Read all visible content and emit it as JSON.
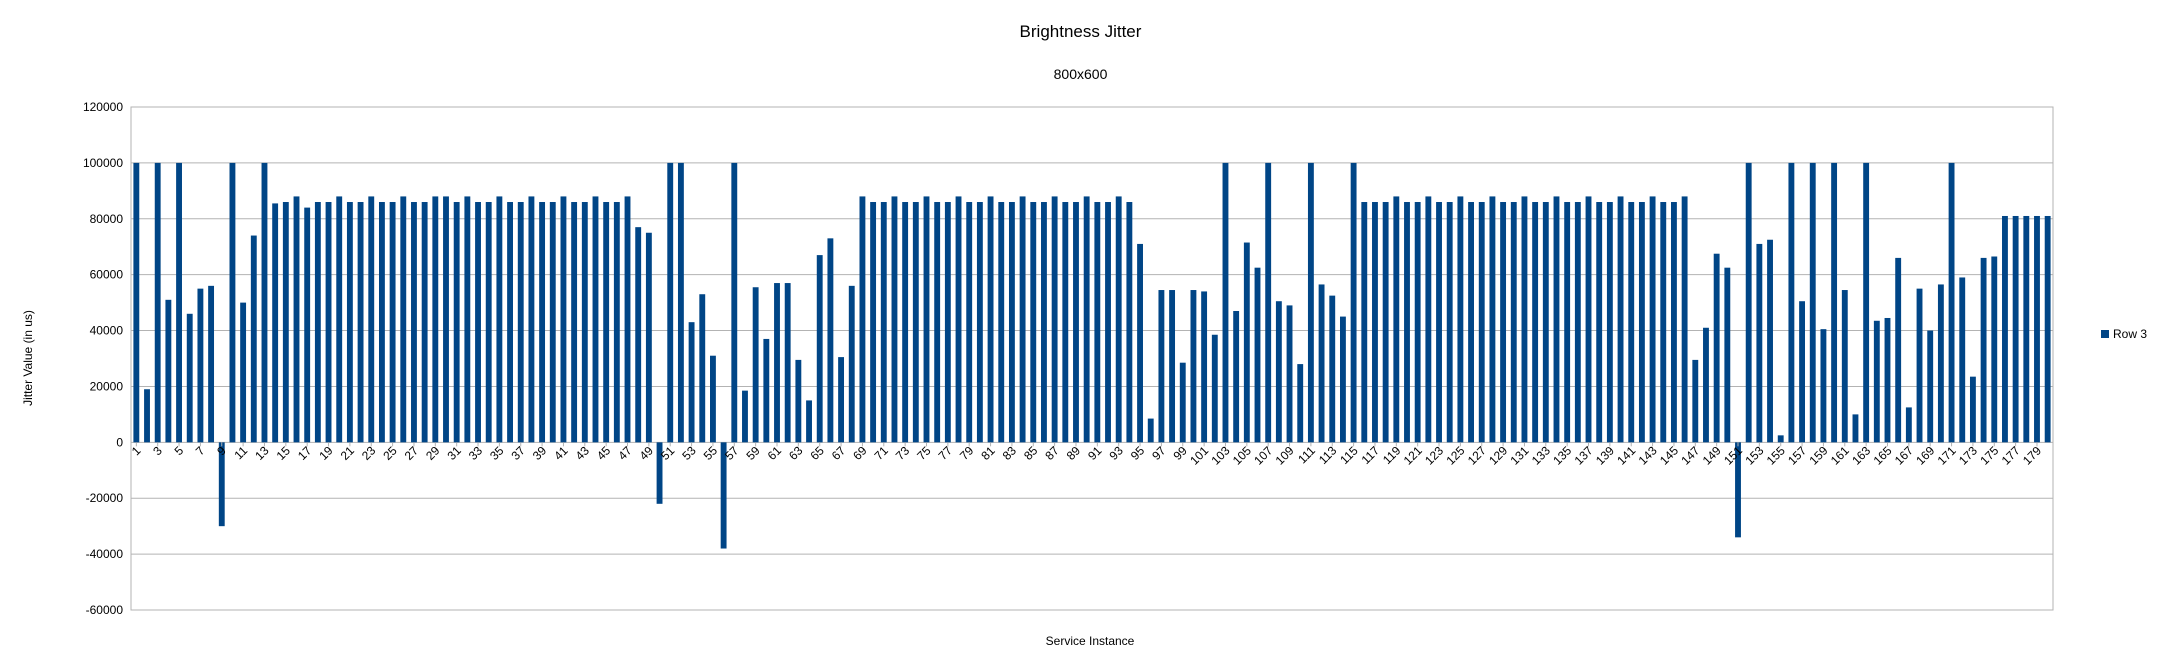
{
  "colors": {
    "series": "#004586",
    "grid": "#b3b3b3",
    "axis": "#b3b3b3"
  },
  "chart_data": {
    "type": "bar",
    "title": "Brightness Jitter",
    "subtitle": "800x600",
    "xlabel": "Service Instance",
    "ylabel": "Jitter Value (in us)",
    "ylim": [
      -60000,
      120000
    ],
    "yticks": [
      120000,
      100000,
      80000,
      60000,
      40000,
      20000,
      0,
      -20000,
      -40000,
      -60000
    ],
    "grid": true,
    "legend_position": "right",
    "x_tick_labels": [
      "1",
      "3",
      "5",
      "7",
      "9",
      "11",
      "13",
      "15",
      "17",
      "19",
      "21",
      "23",
      "25",
      "27",
      "29",
      "31",
      "33",
      "35",
      "37",
      "39",
      "41",
      "43",
      "45",
      "47",
      "49",
      "51",
      "53",
      "55",
      "57",
      "59",
      "61",
      "63",
      "65",
      "67",
      "69",
      "71",
      "73",
      "75",
      "77",
      "79",
      "81",
      "83",
      "85",
      "87",
      "89",
      "91",
      "93",
      "95",
      "97",
      "99",
      "101",
      "103",
      "105",
      "107",
      "109",
      "111",
      "113",
      "115",
      "117",
      "119",
      "121",
      "123",
      "125",
      "127",
      "129",
      "131",
      "133",
      "135",
      "137",
      "139",
      "141",
      "143",
      "145",
      "147",
      "149",
      "151",
      "153",
      "155",
      "157",
      "159",
      "161",
      "163",
      "165",
      "167",
      "169",
      "171",
      "173",
      "175",
      "177",
      "179"
    ],
    "series": [
      {
        "name": "Row 3",
        "values": [
          100000,
          19000,
          100000,
          51000,
          100000,
          46000,
          55000,
          56000,
          -30000,
          100000,
          50000,
          74000,
          100000,
          85500,
          86000,
          88000,
          84000,
          86000,
          86000,
          88000,
          86000,
          86000,
          88000,
          86000,
          86000,
          88000,
          86000,
          86000,
          88000,
          88000,
          86000,
          88000,
          86000,
          86000,
          88000,
          86000,
          86000,
          88000,
          86000,
          86000,
          88000,
          86000,
          86000,
          88000,
          86000,
          86000,
          88000,
          77000,
          75000,
          -22000,
          100000,
          100000,
          43000,
          53000,
          31000,
          -38000,
          100000,
          18500,
          55500,
          37000,
          57000,
          57000,
          29500,
          15000,
          67000,
          73000,
          30500,
          56000,
          88000,
          86000,
          86000,
          88000,
          86000,
          86000,
          88000,
          86000,
          86000,
          88000,
          86000,
          86000,
          88000,
          86000,
          86000,
          88000,
          86000,
          86000,
          88000,
          86000,
          86000,
          88000,
          86000,
          86000,
          88000,
          86000,
          71000,
          8500,
          54500,
          54500,
          28500,
          54500,
          54000,
          38500,
          100000,
          47000,
          71500,
          62500,
          100000,
          50500,
          49000,
          28000,
          100000,
          56500,
          52500,
          45000,
          100000,
          86000,
          86000,
          86000,
          88000,
          86000,
          86000,
          88000,
          86000,
          86000,
          88000,
          86000,
          86000,
          88000,
          86000,
          86000,
          88000,
          86000,
          86000,
          88000,
          86000,
          86000,
          88000,
          86000,
          86000,
          88000,
          86000,
          86000,
          88000,
          86000,
          86000,
          88000,
          29500,
          41000,
          67500,
          62500,
          -34000,
          100000,
          71000,
          72500,
          2500,
          100000,
          50500,
          100000,
          40500,
          100000,
          54500,
          10000,
          100000,
          43500,
          44500,
          66000,
          12500,
          55000,
          40000,
          56500,
          100000,
          59000,
          23500,
          66000,
          66500,
          81000,
          81000,
          81000,
          81000,
          81000
        ]
      }
    ]
  }
}
